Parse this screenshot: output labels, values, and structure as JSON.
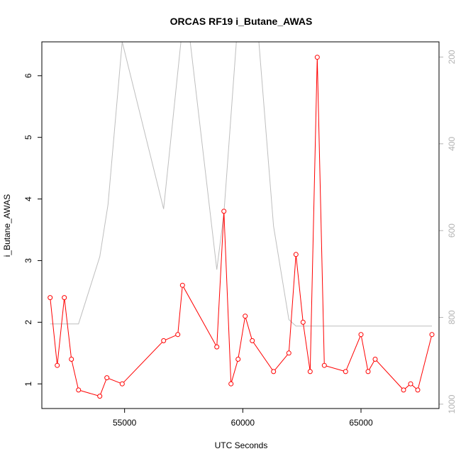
{
  "chart_data": {
    "type": "line",
    "title": "ORCAS RF19 i_Butane_AWAS",
    "xlabel": "UTC Seconds",
    "ylabel": "i_Butane_AWAS",
    "xlim": [
      51500,
      68300
    ],
    "ylim": [
      0.6,
      6.55
    ],
    "x_ticks": [
      55000,
      60000,
      65000
    ],
    "y_ticks": [
      1,
      2,
      3,
      4,
      5,
      6
    ],
    "y2lim": [
      1010,
      165
    ],
    "y2_ticks": [
      200,
      400,
      600,
      800,
      1000
    ],
    "grid": false,
    "series": [
      {
        "color": "#ff0000",
        "marker": "open-circle",
        "axis": "left",
        "x": [
          51850,
          52150,
          52450,
          52750,
          53050,
          53950,
          54250,
          54900,
          56650,
          57250,
          57450,
          58900,
          59200,
          59500,
          59800,
          60100,
          60400,
          61300,
          61950,
          62250,
          62550,
          62850,
          63150,
          63450,
          64350,
          65000,
          65300,
          65600,
          66800,
          67100,
          67400,
          68000
        ],
        "y": [
          2.4,
          1.3,
          2.4,
          1.4,
          0.9,
          0.8,
          1.1,
          1.0,
          1.7,
          1.8,
          2.6,
          1.6,
          3.8,
          1.0,
          1.4,
          2.1,
          1.7,
          1.2,
          1.5,
          3.1,
          2.0,
          1.2,
          6.3,
          1.3,
          1.2,
          1.8,
          1.2,
          1.4,
          0.9,
          1.0,
          0.9,
          1.8
        ]
      },
      {
        "color": "#bebebe",
        "marker": "none",
        "axis": "right",
        "x": [
          51850,
          53050,
          53950,
          54300,
          54900,
          56650,
          57450,
          57700,
          58900,
          59200,
          59800,
          60600,
          61300,
          61950,
          62250,
          68000
        ],
        "y": [
          815,
          815,
          660,
          540,
          165,
          550,
          130,
          130,
          690,
          560,
          110,
          110,
          590,
          805,
          820,
          820
        ]
      }
    ]
  }
}
